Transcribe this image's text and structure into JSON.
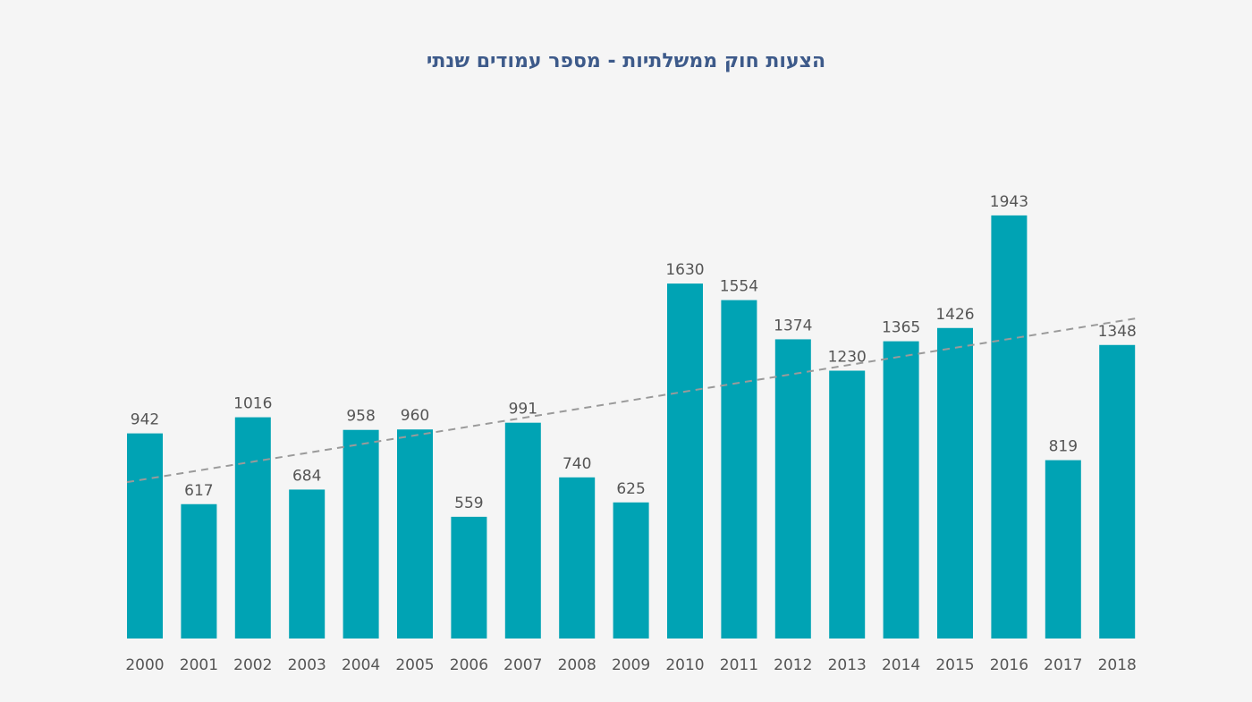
{
  "chart_data": {
    "type": "bar",
    "title": "הצעות חוק ממשלתיות - מספר עמודים שנתי",
    "categories": [
      "2000",
      "2001",
      "2002",
      "2003",
      "2004",
      "2005",
      "2006",
      "2007",
      "2008",
      "2009",
      "2010",
      "2011",
      "2012",
      "2013",
      "2014",
      "2015",
      "2016",
      "2017",
      "2018"
    ],
    "series": [
      {
        "values": [
          942,
          617,
          1016,
          684,
          958,
          960,
          559,
          991,
          740,
          625,
          1630,
          1554,
          1374,
          1230,
          1365,
          1426,
          1943,
          819,
          1348
        ]
      }
    ],
    "ylim": [
      0,
      2000
    ],
    "xlabel": "",
    "ylabel": "",
    "grid": false,
    "trendline": {
      "style": "dashed",
      "color": "#9a9a9a"
    },
    "colors": {
      "bar": "#00a3b4",
      "title": "#3d5a8a",
      "text": "#555555",
      "background": "#f5f5f5"
    }
  }
}
